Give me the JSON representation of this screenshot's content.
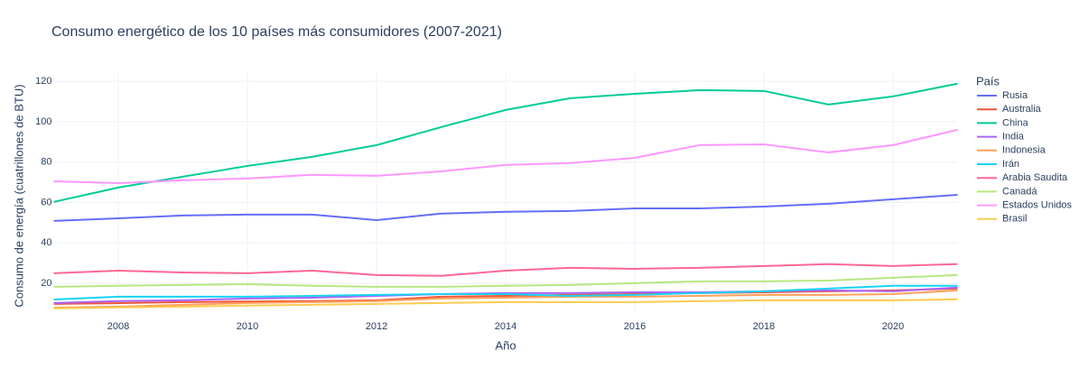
{
  "chart_data": {
    "type": "line",
    "title": "Consumo energético de los 10 países más consumidores (2007-2021)",
    "x_label": "Año",
    "y_label": "Consumo de energía (cuatrillones de BTU)",
    "legend_title": "País",
    "x": [
      2007,
      2008,
      2009,
      2010,
      2011,
      2012,
      2013,
      2014,
      2015,
      2016,
      2017,
      2018,
      2019,
      2020,
      2021
    ],
    "xlim": [
      2007,
      2021
    ],
    "xticks": [
      2008,
      2010,
      2012,
      2014,
      2016,
      2018,
      2020
    ],
    "ylim": [
      6.2,
      124.5
    ],
    "yticks": [
      20,
      40,
      60,
      80,
      100,
      120
    ],
    "grid": true,
    "series": [
      {
        "name": "Rusia",
        "color": "#636efa",
        "values": [
          50.9,
          52.2,
          53.6,
          54,
          54,
          51.3,
          54.5,
          55.4,
          55.8,
          57.1,
          57.1,
          58,
          59.4,
          61.6,
          63.8
        ]
      },
      {
        "name": "Australia",
        "color": "#EF553B",
        "values": [
          9.8,
          10.2,
          10.7,
          11,
          11.2,
          11.6,
          13.4,
          13.8,
          14.3,
          14.7,
          15.2,
          15.6,
          16.1,
          16.5,
          17.4
        ]
      },
      {
        "name": "China",
        "color": "#00cc96",
        "values": [
          60.3,
          67.4,
          72.8,
          78.1,
          82.6,
          88.4,
          97.3,
          105.8,
          111.6,
          113.8,
          115.6,
          115.2,
          108.5,
          112.5,
          118.8
        ]
      },
      {
        "name": "India",
        "color": "#ab63fa",
        "values": [
          10.3,
          11.2,
          11.6,
          12.5,
          12.9,
          13.8,
          14.7,
          15.2,
          15.2,
          15.6,
          15.6,
          16.1,
          16.5,
          16.1,
          17.9
        ]
      },
      {
        "name": "Indonesia",
        "color": "#FFA15A",
        "values": [
          8,
          8.5,
          9.4,
          10.3,
          10.7,
          11.2,
          12.5,
          12.9,
          13.4,
          13.4,
          13.8,
          14.3,
          14.3,
          14.7,
          16.5
        ]
      },
      {
        "name": "Irán",
        "color": "#19d3f3",
        "values": [
          12,
          13.4,
          13.4,
          13.4,
          13.8,
          14.3,
          14.7,
          14.7,
          13.8,
          14.3,
          15.2,
          16.1,
          17.4,
          18.8,
          18.8
        ]
      },
      {
        "name": "Arabia Saudita",
        "color": "#FF6692",
        "values": [
          25,
          26.3,
          25.4,
          25,
          26.3,
          24.1,
          23.7,
          26.3,
          27.7,
          27.2,
          27.7,
          28.6,
          29.5,
          28.6,
          29.5
        ]
      },
      {
        "name": "Canadá",
        "color": "#B6E880",
        "values": [
          18.3,
          18.8,
          19.2,
          19.6,
          18.8,
          18.3,
          18.3,
          18.8,
          19.2,
          20.1,
          21,
          21,
          21.4,
          22.8,
          24.1
        ]
      },
      {
        "name": "Estados Unidos",
        "color": "#FF97FF",
        "values": [
          70.5,
          69.6,
          71,
          71.9,
          73.7,
          73.2,
          75.4,
          78.6,
          79.5,
          82.1,
          88.4,
          88.8,
          84.8,
          88.4,
          96
        ]
      },
      {
        "name": "Brasil",
        "color": "#FECB52",
        "values": [
          7.6,
          8.1,
          8.5,
          9,
          9.4,
          9.8,
          10.3,
          10.7,
          10.7,
          10.7,
          11.2,
          11.6,
          11.6,
          11.6,
          12.1
        ]
      }
    ]
  }
}
